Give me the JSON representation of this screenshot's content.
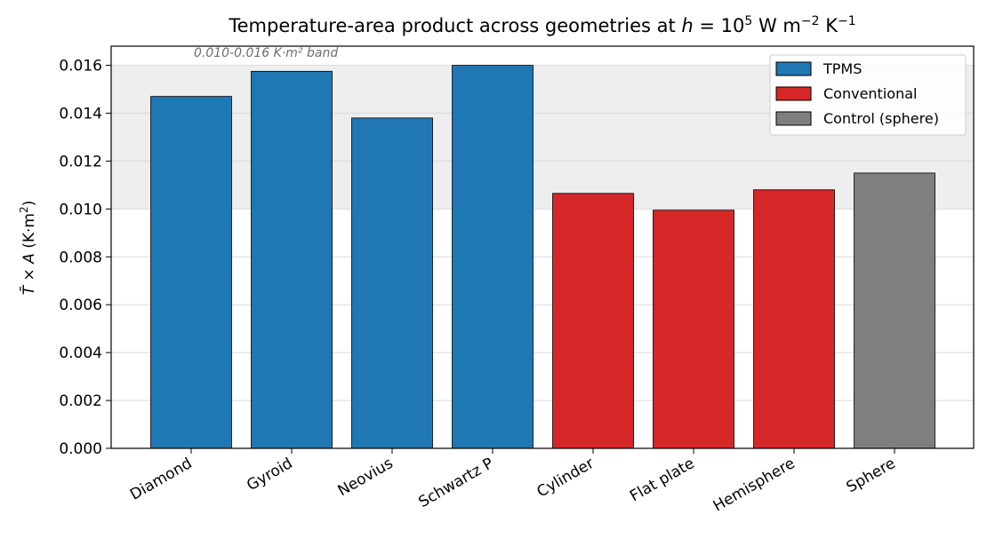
{
  "chart_data": {
    "type": "bar",
    "title": {
      "pre": "Temperature-area product across geometries at ",
      "var": "h",
      "eq": " = 10",
      "exp1": "5",
      "unit_w": " W m",
      "exp2": "−2",
      "unit_k": " K",
      "exp3": "−1"
    },
    "ylabel": {
      "var": "T̄",
      "times": " × ",
      "var2": "A",
      "unit_open": "  (K·m",
      "unit_exp": "2",
      "unit_close": ")"
    },
    "ylim": [
      0,
      0.0168
    ],
    "yticks": [
      "0.000",
      "0.002",
      "0.004",
      "0.006",
      "0.008",
      "0.010",
      "0.012",
      "0.014",
      "0.016"
    ],
    "grid": "horizontal",
    "band": {
      "range": [
        0.01,
        0.016
      ],
      "label": "0.010-0.016 K·m² band"
    },
    "categories": [
      "Diamond",
      "Gyroid",
      "Neovius",
      "Schwartz P",
      "Cylinder",
      "Flat plate",
      "Hemisphere",
      "Sphere"
    ],
    "values": [
      0.0147,
      0.01575,
      0.0138,
      0.016,
      0.01065,
      0.00995,
      0.0108,
      0.0115
    ],
    "groups": [
      "TPMS",
      "TPMS",
      "TPMS",
      "TPMS",
      "Conventional",
      "Conventional",
      "Conventional",
      "Control (sphere)"
    ],
    "legend": {
      "placement": "top-right",
      "entries": [
        {
          "label": "TPMS",
          "color": "#1f77b4"
        },
        {
          "label": "Conventional",
          "color": "#d62728"
        },
        {
          "label": "Control (sphere)",
          "color": "#7f7f7f"
        }
      ]
    }
  }
}
